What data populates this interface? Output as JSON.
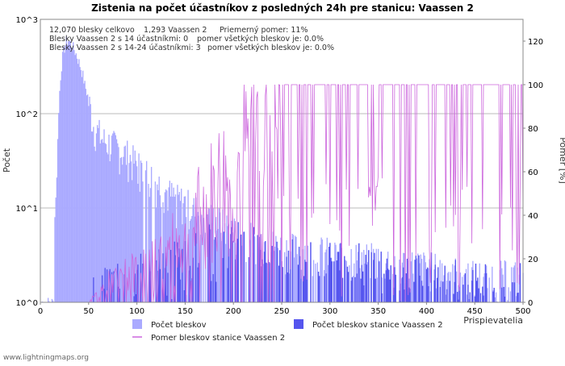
{
  "chart_data": {
    "type": "bar",
    "title": "Zistenia na počet účastníkov z posledných 24h pre stanicu: Vaassen 2",
    "xlabel": "Prispievatelia",
    "ylabel_left": "Počet",
    "ylabel_right": "Pomer [%]",
    "x_range": [
      0,
      500
    ],
    "x_ticks": [
      "0",
      "50",
      "100",
      "150",
      "200",
      "250",
      "300",
      "350",
      "400",
      "450",
      "500"
    ],
    "y_left_scale": "log",
    "y_left_range": [
      1,
      1000
    ],
    "y_left_ticks": [
      "10^0",
      "10^1",
      "10^2",
      "10^3"
    ],
    "y_right_range": [
      0,
      130
    ],
    "y_right_ticks": [
      "0",
      "20",
      "40",
      "60",
      "80",
      "100",
      "120"
    ],
    "stats": {
      "line1_a": "12,070 blesky celkovo",
      "line1_b": "1,293 Vaassen 2",
      "line1_c": "Priemerný pomer: 11%",
      "line2_a": "Blesky Vaassen 2 s 14 účastníkmi: 0",
      "line2_b": "pomer všetkých bleskov je: 0.0%",
      "line3_a": "Blesky Vaassen 2 s 14-24 účastníkmi: 3",
      "line3_b": "pomer všetkých bleskov je: 0.0%"
    },
    "legend": {
      "total": "Počet bleskov",
      "station": "Počet bleskov stanice Vaassen 2",
      "ratio": "Pomer bleskov stanice Vaassen 2"
    },
    "colors": {
      "total": "#aaaaff",
      "station": "#5555ee",
      "ratio": "#cc66dd",
      "grid": "#bbbbbb"
    },
    "series": [
      {
        "name": "Počet bleskov",
        "envelope": [
          [
            1,
            1
          ],
          [
            13,
            1
          ],
          [
            14,
            1
          ],
          [
            15,
            8
          ],
          [
            17,
            20
          ],
          [
            19,
            100
          ],
          [
            21,
            250
          ],
          [
            23,
            400
          ],
          [
            25,
            500
          ],
          [
            27,
            580
          ],
          [
            29,
            600
          ],
          [
            31,
            560
          ],
          [
            33,
            520
          ],
          [
            35,
            480
          ],
          [
            37,
            430
          ],
          [
            40,
            350
          ],
          [
            43,
            280
          ],
          [
            46,
            200
          ],
          [
            50,
            140
          ],
          [
            55,
            80
          ],
          [
            60,
            65
          ],
          [
            65,
            55
          ],
          [
            70,
            52
          ],
          [
            80,
            45
          ],
          [
            90,
            38
          ],
          [
            100,
            30
          ],
          [
            110,
            25
          ],
          [
            120,
            20
          ],
          [
            130,
            16
          ],
          [
            140,
            13
          ],
          [
            150,
            12
          ],
          [
            160,
            10
          ],
          [
            170,
            9
          ],
          [
            180,
            8
          ],
          [
            190,
            7
          ],
          [
            200,
            6
          ],
          [
            220,
            5
          ],
          [
            250,
            4
          ],
          [
            300,
            3.5
          ],
          [
            350,
            3
          ],
          [
            400,
            2.5
          ],
          [
            450,
            2
          ],
          [
            500,
            2
          ]
        ]
      },
      {
        "name": "Počet bleskov stanice Vaassen 2",
        "envelope": [
          [
            1,
            1
          ],
          [
            50,
            1
          ],
          [
            60,
            1.2
          ],
          [
            80,
            1.5
          ],
          [
            100,
            1.8
          ],
          [
            120,
            2
          ],
          [
            140,
            2.5
          ],
          [
            160,
            3
          ],
          [
            180,
            4
          ],
          [
            200,
            5
          ],
          [
            220,
            6
          ],
          [
            250,
            5
          ],
          [
            280,
            5
          ],
          [
            300,
            4
          ],
          [
            330,
            3.5
          ],
          [
            350,
            3
          ],
          [
            370,
            2.5
          ],
          [
            400,
            2.5
          ],
          [
            420,
            2
          ],
          [
            450,
            2
          ],
          [
            480,
            1.8
          ],
          [
            500,
            1.6
          ]
        ]
      },
      {
        "name": "Pomer bleskov stanice Vaassen 2",
        "envelope_percent": [
          [
            50,
            0
          ],
          [
            70,
            8
          ],
          [
            90,
            12
          ],
          [
            110,
            15
          ],
          [
            130,
            20
          ],
          [
            150,
            28
          ],
          [
            170,
            38
          ],
          [
            190,
            50
          ],
          [
            210,
            60
          ],
          [
            230,
            72
          ],
          [
            250,
            85
          ],
          [
            270,
            95
          ],
          [
            300,
            100
          ],
          [
            350,
            100
          ],
          [
            400,
            100
          ],
          [
            450,
            100
          ],
          [
            500,
            100
          ]
        ]
      }
    ]
  },
  "footer": "www.lightningmaps.org"
}
